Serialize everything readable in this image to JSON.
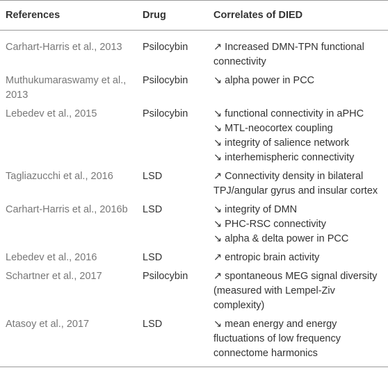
{
  "table": {
    "headers": [
      "References",
      "Drug",
      "Correlates of DIED"
    ],
    "rows": [
      {
        "reference": "Carhart-Harris et al., 2013",
        "drug": "Psilocybin",
        "correlates": [
          "↗ Increased DMN-TPN functional connectivity"
        ]
      },
      {
        "reference": "Muthukumaraswamy et al., 2013",
        "drug": "Psilocybin",
        "correlates": [
          "↘ alpha power in PCC"
        ]
      },
      {
        "reference": "Lebedev et al., 2015",
        "drug": "Psilocybin",
        "correlates": [
          "↘ functional connectivity in aPHC",
          "↘ MTL-neocortex coupling",
          "↘ integrity of salience network",
          "↘ interhemispheric connectivity"
        ]
      },
      {
        "reference": "Tagliazucchi et al., 2016",
        "drug": "LSD",
        "correlates": [
          "↗ Connectivity density in bilateral TPJ/angular gyrus and insular cortex"
        ]
      },
      {
        "reference": "Carhart-Harris et al., 2016b",
        "drug": "LSD",
        "correlates": [
          "↘ integrity of DMN",
          "↘ PHC-RSC connectivity",
          "↘ alpha & delta power in PCC"
        ]
      },
      {
        "reference": "Lebedev et al., 2016",
        "drug": "LSD",
        "correlates": [
          "↗ entropic brain activity"
        ]
      },
      {
        "reference": "Schartner et al., 2017",
        "drug": "Psilocybin",
        "correlates": [
          "↗ spontaneous MEG signal diversity (measured with Lempel-Ziv complexity)"
        ]
      },
      {
        "reference": "Atasoy et al., 2017",
        "drug": "LSD",
        "correlates": [
          "↘ mean energy and energy fluctuations of low frequency connectome harmonics"
        ]
      }
    ]
  }
}
